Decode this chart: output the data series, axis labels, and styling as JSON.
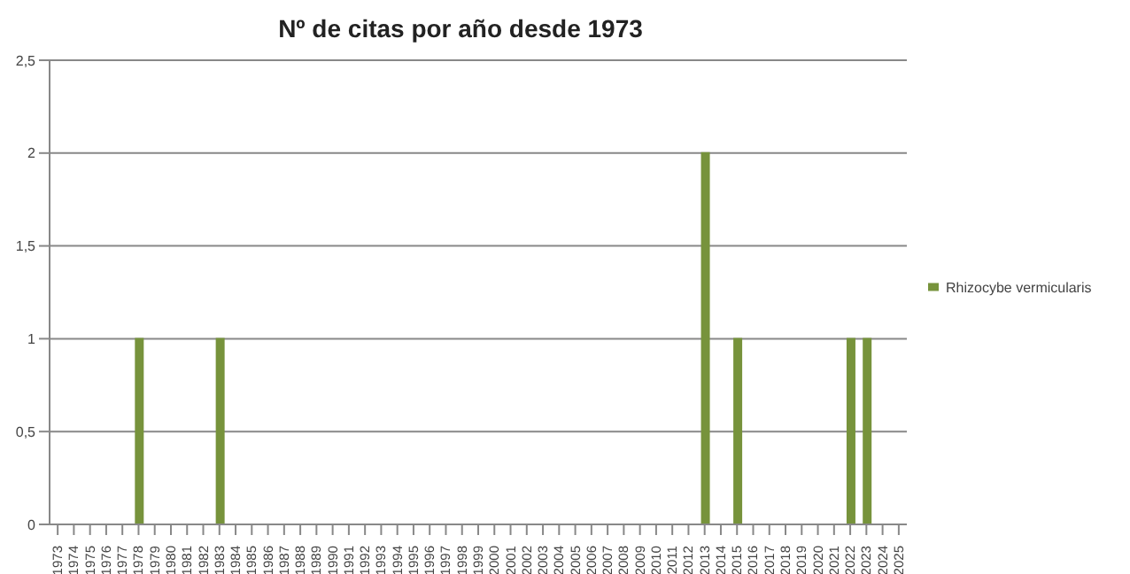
{
  "chart_data": {
    "type": "bar",
    "title": "Nº de citas por año desde 1973",
    "categories": [
      "1973",
      "1974",
      "1975",
      "1976",
      "1977",
      "1978",
      "1979",
      "1980",
      "1981",
      "1982",
      "1983",
      "1984",
      "1985",
      "1986",
      "1987",
      "1988",
      "1989",
      "1990",
      "1991",
      "1992",
      "1993",
      "1994",
      "1995",
      "1996",
      "1997",
      "1998",
      "1999",
      "2000",
      "2001",
      "2002",
      "2003",
      "2004",
      "2005",
      "2006",
      "2007",
      "2008",
      "2009",
      "2010",
      "2011",
      "2012",
      "2013",
      "2014",
      "2015",
      "2016",
      "2017",
      "2018",
      "2019",
      "2020",
      "2021",
      "2022",
      "2023",
      "2024",
      "2025"
    ],
    "series": [
      {
        "name": "Rhizocybe vermicularis",
        "color": "#77933c",
        "values": [
          0,
          0,
          0,
          0,
          0,
          1,
          0,
          0,
          0,
          0,
          1,
          0,
          0,
          0,
          0,
          0,
          0,
          0,
          0,
          0,
          0,
          0,
          0,
          0,
          0,
          0,
          0,
          0,
          0,
          0,
          0,
          0,
          0,
          0,
          0,
          0,
          0,
          0,
          0,
          0,
          2,
          0,
          1,
          0,
          0,
          0,
          0,
          0,
          0,
          1,
          1,
          0,
          0
        ]
      }
    ],
    "ylim": [
      0,
      2.5
    ],
    "yticks": [
      0,
      {
        "value": 0.5,
        "label": "0,5"
      },
      1,
      {
        "value": 1.5,
        "label": "1,5"
      },
      2,
      {
        "value": 2.5,
        "label": "2,5"
      }
    ],
    "grid": "y",
    "legend": "right"
  }
}
